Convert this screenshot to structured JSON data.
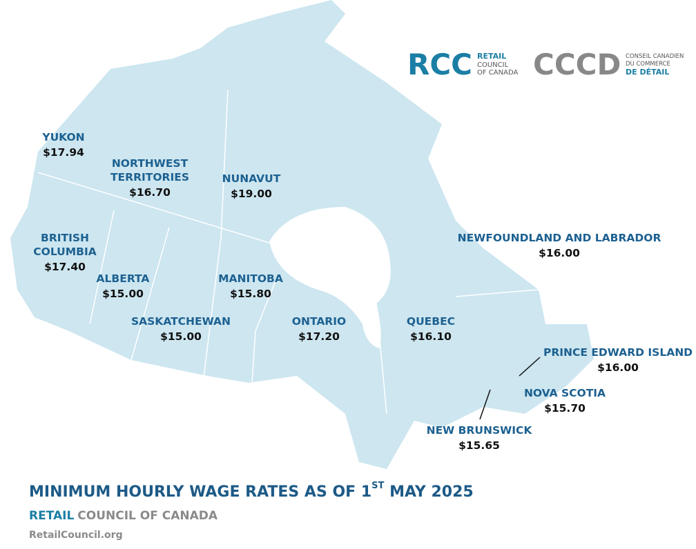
{
  "logos": {
    "rcc": {
      "mark": "RCC",
      "lines": [
        "RETAIL",
        "COUNCIL",
        "OF CANADA"
      ]
    },
    "cccd": {
      "mark": "CCCD",
      "lines": [
        "CONSEIL CANADIEN",
        "DU COMMERCE",
        "DE DÉTAIL"
      ]
    }
  },
  "regions": [
    {
      "name": [
        "YUKON"
      ],
      "wage": "$17.94"
    },
    {
      "name": [
        "NORTHWEST",
        "TERRITORIES"
      ],
      "wage": "$16.70"
    },
    {
      "name": [
        "NUNAVUT"
      ],
      "wage": "$19.00"
    },
    {
      "name": [
        "BRITISH",
        "COLUMBIA"
      ],
      "wage": "$17.40"
    },
    {
      "name": [
        "ALBERTA"
      ],
      "wage": "$15.00"
    },
    {
      "name": [
        "MANITOBA"
      ],
      "wage": "$15.80"
    },
    {
      "name": [
        "SASKATCHEWAN"
      ],
      "wage": "$15.00"
    },
    {
      "name": [
        "ONTARIO"
      ],
      "wage": "$17.20"
    },
    {
      "name": [
        "QUEBEC"
      ],
      "wage": "$16.10"
    },
    {
      "name": [
        "NEWFOUNDLAND AND LABRADOR"
      ],
      "wage": "$16.00"
    },
    {
      "name": [
        "PRINCE EDWARD ISLAND"
      ],
      "wage": "$16.00"
    },
    {
      "name": [
        "NOVA SCOTIA"
      ],
      "wage": "$15.70"
    },
    {
      "name": [
        "NEW BRUNSWICK"
      ],
      "wage": "$15.65"
    }
  ],
  "title": {
    "text": "MINIMUM HOURLY WAGE RATES AS OF 1",
    "superscript": "ST",
    "suffix": " MAY 2025"
  },
  "footer": {
    "brand": "RETAIL",
    "brand_rest": "COUNCIL OF CANADA",
    "url": "RetailCouncil.org"
  }
}
